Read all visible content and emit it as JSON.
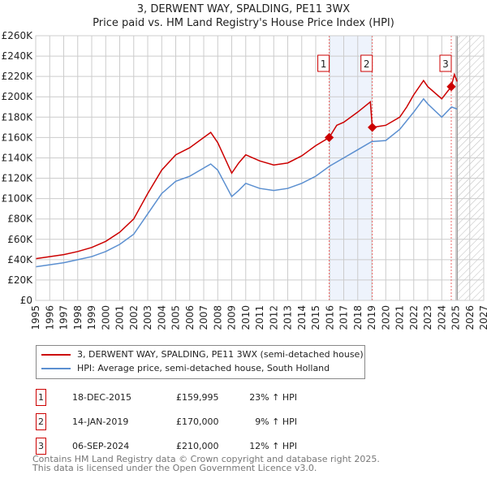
{
  "chart_data": {
    "type": "line",
    "title": "3, DERWENT WAY, SPALDING, PE11 3WX",
    "subtitle": "Price paid vs. HM Land Registry's House Price Index (HPI)",
    "xlim": [
      1995,
      2027
    ],
    "ylim": [
      0,
      260000
    ],
    "y_ticks": [
      0,
      20000,
      40000,
      60000,
      80000,
      100000,
      120000,
      140000,
      160000,
      180000,
      200000,
      220000,
      240000,
      260000
    ],
    "y_tick_labels": [
      "£0",
      "£20K",
      "£40K",
      "£60K",
      "£80K",
      "£100K",
      "£120K",
      "£140K",
      "£160K",
      "£180K",
      "£200K",
      "£220K",
      "£240K",
      "£260K"
    ],
    "x_ticks": [
      "1995",
      "1996",
      "1997",
      "1998",
      "1999",
      "2000",
      "2001",
      "2002",
      "2003",
      "2004",
      "2005",
      "2006",
      "2007",
      "2008",
      "2009",
      "2010",
      "2011",
      "2012",
      "2013",
      "2014",
      "2015",
      "2016",
      "2017",
      "2018",
      "2019",
      "2020",
      "2021",
      "2022",
      "2023",
      "2024",
      "2025",
      "2026",
      "2027"
    ],
    "grid": true,
    "series": [
      {
        "name": "3, DERWENT WAY, SPALDING, PE11 3WX (semi-detached house)",
        "color": "#cc0000",
        "x": [
          1995,
          1996,
          1997,
          1998,
          1999,
          2000,
          2001,
          2002,
          2003,
          2004,
          2005,
          2006,
          2007,
          2007.5,
          2008,
          2008.5,
          2009,
          2009.5,
          2010,
          2011,
          2012,
          2013,
          2014,
          2015,
          2015.96,
          2016.5,
          2017,
          2018,
          2018.9,
          2019.04,
          2020,
          2021,
          2021.5,
          2022,
          2022.7,
          2023,
          2024,
          2024.68,
          2024.9,
          2025.1
        ],
        "y": [
          41000,
          43000,
          45000,
          48000,
          52000,
          58000,
          67000,
          80000,
          105000,
          128000,
          143000,
          150000,
          160000,
          165000,
          155000,
          140000,
          125000,
          135000,
          143000,
          137000,
          133000,
          135000,
          142000,
          152000,
          159995,
          172000,
          175000,
          185000,
          195000,
          170000,
          172000,
          180000,
          190000,
          202000,
          216000,
          210000,
          198000,
          210000,
          222000,
          215000
        ]
      },
      {
        "name": "HPI: Average price, semi-detached house, South Holland",
        "color": "#5b8fd0",
        "x": [
          1995,
          1996,
          1997,
          1998,
          1999,
          2000,
          2001,
          2002,
          2003,
          2004,
          2005,
          2006,
          2007,
          2007.5,
          2008,
          2008.5,
          2009,
          2009.5,
          2010,
          2011,
          2012,
          2013,
          2014,
          2015,
          2016,
          2017,
          2018,
          2019,
          2020,
          2021,
          2022,
          2022.7,
          2023,
          2024,
          2024.7,
          2025.1
        ],
        "y": [
          33000,
          35000,
          37000,
          40000,
          43000,
          48000,
          55000,
          65000,
          85000,
          105000,
          117000,
          122000,
          130000,
          134000,
          128000,
          115000,
          102000,
          108000,
          115000,
          110000,
          108000,
          110000,
          115000,
          122000,
          132000,
          140000,
          148000,
          156000,
          157000,
          168000,
          185000,
          198000,
          193000,
          180000,
          190000,
          188000
        ]
      }
    ],
    "sales": [
      {
        "label": "1",
        "x": 2015.96,
        "y": 159995
      },
      {
        "label": "2",
        "x": 2019.04,
        "y": 170000
      },
      {
        "label": "3",
        "x": 2024.68,
        "y": 210000
      }
    ],
    "shaded_range": [
      2015.96,
      2019.04
    ],
    "forecast_from": 2025.1
  },
  "legend": {
    "red": "3, DERWENT WAY, SPALDING, PE11 3WX (semi-detached house)",
    "blue": "HPI: Average price, semi-detached house, South Holland"
  },
  "table": [
    {
      "num": "1",
      "date": "18-DEC-2015",
      "price": "£159,995",
      "hpi": "23% ↑ HPI"
    },
    {
      "num": "2",
      "date": "14-JAN-2019",
      "price": "£170,000",
      "hpi": "9% ↑ HPI"
    },
    {
      "num": "3",
      "date": "06-SEP-2024",
      "price": "£210,000",
      "hpi": "12% ↑ HPI"
    }
  ],
  "footer": {
    "line1": "Contains HM Land Registry data © Crown copyright and database right 2025.",
    "line2": "This data is licensed under the Open Government Licence v3.0."
  }
}
